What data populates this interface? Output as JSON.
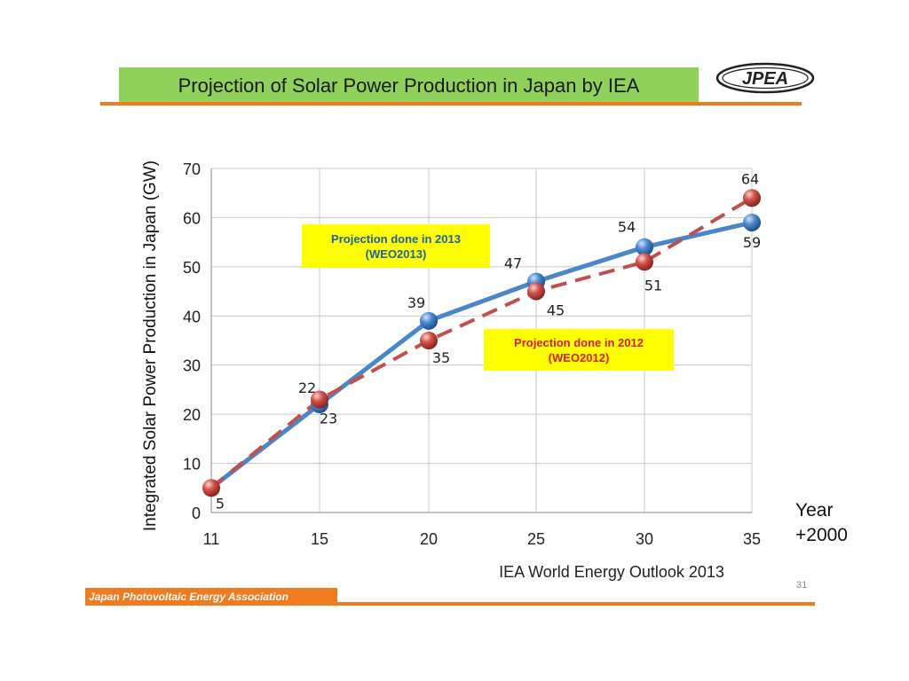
{
  "slide": {
    "title": "Projection of Solar Power Production in Japan by IEA",
    "logo_text": "JPEA",
    "footer": "Japan Photovoltaic Energy Association",
    "page_number": "31",
    "year_line1": "Year",
    "year_line2": "+2000"
  },
  "notes": {
    "weo2013": {
      "line1": "Projection done in 2013",
      "line2": "(WEO2013)"
    },
    "weo2012": {
      "line1": "Projection done in 2012",
      "line2": "(WEO2012)"
    }
  },
  "colors": {
    "title_bg": "#8fd15a",
    "accent_orange": "#f07a1e",
    "series_2013": "#4a86c8",
    "series_2012": "#c0504d",
    "note_bg": "#ffff00",
    "note_2013_text": "#1f5fa8",
    "note_2012_text": "#d81e1e"
  },
  "chart_data": {
    "type": "line",
    "title": "",
    "xlabel": "IEA World Energy Outlook 2013",
    "ylabel": "Integrated Solar Power Production in Japan (GW)",
    "categories": [
      "11",
      "15",
      "20",
      "25",
      "30",
      "35"
    ],
    "ylim": [
      0,
      70
    ],
    "yticks": [
      0,
      10,
      20,
      30,
      40,
      50,
      60,
      70
    ],
    "grid": true,
    "series": [
      {
        "values": [
          5,
          22,
          39,
          47,
          54,
          59
        ],
        "style": "solid",
        "color": "#4a86c8"
      },
      {
        "values": [
          5,
          23,
          35,
          45,
          51,
          64
        ],
        "style": "dashed",
        "color": "#c0504d"
      }
    ],
    "data_labels": {
      "2013": [
        "",
        "22",
        "39",
        "47",
        "54",
        "59"
      ],
      "2012": [
        "5",
        "23",
        "35",
        "45",
        "51",
        "64"
      ]
    }
  }
}
